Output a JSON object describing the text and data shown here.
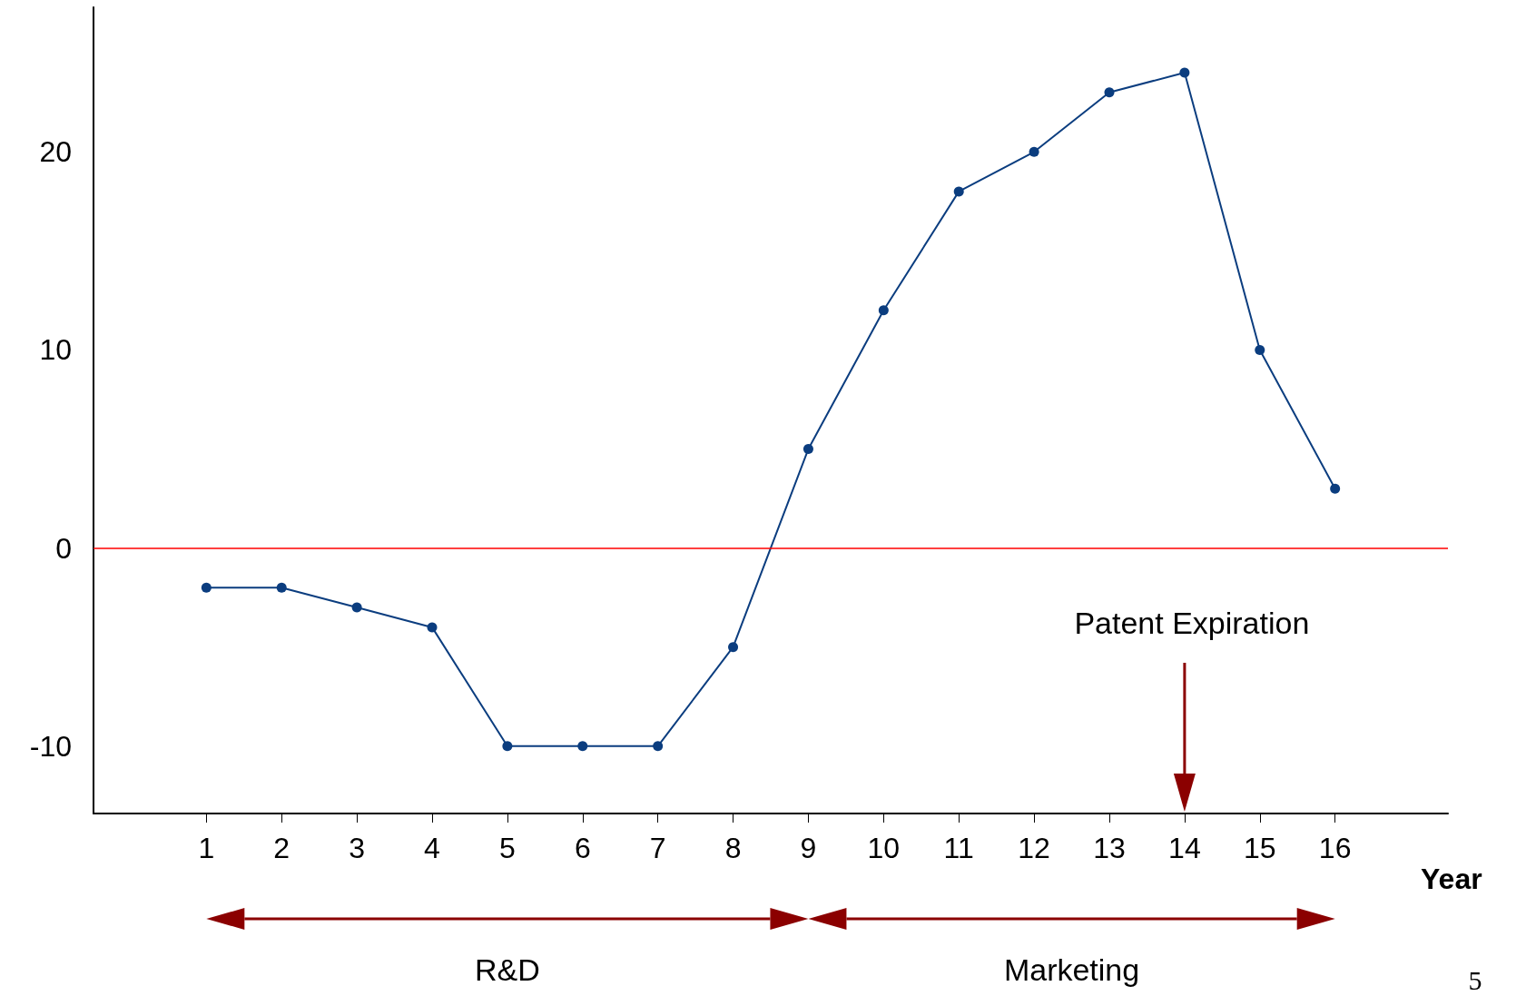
{
  "chart_data": {
    "type": "line",
    "xlabel": "Year",
    "x": [
      1,
      2,
      3,
      4,
      5,
      6,
      7,
      8,
      9,
      10,
      11,
      12,
      13,
      14,
      15,
      16
    ],
    "series": [
      {
        "color": "#0b3d7f",
        "values": [
          -2,
          -2,
          -3,
          -4,
          -10,
          -10,
          -10,
          -5,
          5,
          12,
          18,
          20,
          23,
          24,
          10,
          3
        ]
      }
    ],
    "xlim": [
      -0.5,
      17.5
    ],
    "xticks": [
      1,
      2,
      3,
      4,
      5,
      6,
      7,
      8,
      9,
      10,
      11,
      12,
      13,
      14,
      15,
      16
    ],
    "ylim": [
      -13.4,
      27.3
    ],
    "yticks": [
      -10,
      0,
      10,
      20
    ],
    "grid": false,
    "marker": "circle",
    "line_style": "solid",
    "ref_lines": [
      {
        "axis": "y",
        "value": 0,
        "color": "#ff0000"
      }
    ],
    "annotations": [
      "Patent Expiration",
      "R&D",
      "Marketing",
      "5"
    ]
  }
}
